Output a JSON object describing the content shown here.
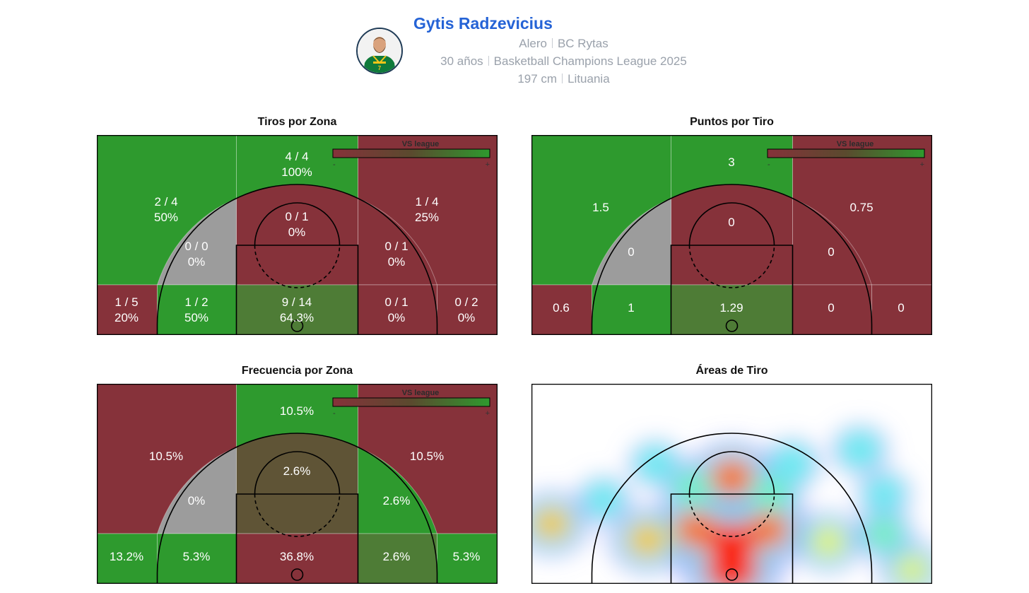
{
  "player": {
    "name": "Gytis Radzevicius",
    "position": "Alero",
    "team": "BC Rytas",
    "age": "30 años",
    "competition": "Basketball Champions League 2025",
    "height": "197 cm",
    "country": "Lituania",
    "avatar_icon": "player-portrait-icon"
  },
  "colors": {
    "above": "#2e9a2e",
    "below": "#86323a",
    "near_above": "#4e7c36",
    "near_below": "#5f5436",
    "no_data": "#9c9c9c",
    "title": "#2563d6"
  },
  "legend": {
    "title": "VS league",
    "minus": "-",
    "plus": "+"
  },
  "chart_data": [
    {
      "type": "heatmap",
      "title": "Tiros por Zona",
      "subtitle": "",
      "zones": [
        {
          "zone": "left-wing-three",
          "line1": "2 / 4",
          "line2": "50%",
          "level": "above"
        },
        {
          "zone": "top-three",
          "line1": "4 / 4",
          "line2": "100%",
          "level": "above"
        },
        {
          "zone": "right-wing-three",
          "line1": "1 / 4",
          "line2": "25%",
          "level": "below"
        },
        {
          "zone": "top-key",
          "line1": "0 / 1",
          "line2": "0%",
          "level": "below"
        },
        {
          "zone": "left-midrange",
          "line1": "0 / 0",
          "line2": "0%",
          "level": "no_data"
        },
        {
          "zone": "right-midrange",
          "line1": "0 / 1",
          "line2": "0%",
          "level": "below"
        },
        {
          "zone": "left-corner-three",
          "line1": "1 / 5",
          "line2": "20%",
          "level": "below"
        },
        {
          "zone": "left-baseline",
          "line1": "1 / 2",
          "line2": "50%",
          "level": "above"
        },
        {
          "zone": "paint",
          "line1": "9 / 14",
          "line2": "64.3%",
          "level": "near_above"
        },
        {
          "zone": "right-baseline",
          "line1": "0 / 1",
          "line2": "0%",
          "level": "below"
        },
        {
          "zone": "right-corner-three",
          "line1": "0 / 2",
          "line2": "0%",
          "level": "below"
        }
      ]
    },
    {
      "type": "heatmap",
      "title": "Puntos por Tiro",
      "subtitle": "",
      "zones": [
        {
          "zone": "left-wing-three",
          "line1": "1.5",
          "line2": "",
          "level": "above"
        },
        {
          "zone": "top-three",
          "line1": "3",
          "line2": "",
          "level": "above"
        },
        {
          "zone": "right-wing-three",
          "line1": "0.75",
          "line2": "",
          "level": "below"
        },
        {
          "zone": "top-key",
          "line1": "0",
          "line2": "",
          "level": "below"
        },
        {
          "zone": "left-midrange",
          "line1": "0",
          "line2": "",
          "level": "no_data"
        },
        {
          "zone": "right-midrange",
          "line1": "0",
          "line2": "",
          "level": "below"
        },
        {
          "zone": "left-corner-three",
          "line1": "0.6",
          "line2": "",
          "level": "below"
        },
        {
          "zone": "left-baseline",
          "line1": "1",
          "line2": "",
          "level": "above"
        },
        {
          "zone": "paint",
          "line1": "1.29",
          "line2": "",
          "level": "near_above"
        },
        {
          "zone": "right-baseline",
          "line1": "0",
          "line2": "",
          "level": "below"
        },
        {
          "zone": "right-corner-three",
          "line1": "0",
          "line2": "",
          "level": "below"
        }
      ]
    },
    {
      "type": "heatmap",
      "title": "Frecuencia por Zona",
      "subtitle": "",
      "zones": [
        {
          "zone": "left-wing-three",
          "line1": "10.5%",
          "line2": "",
          "level": "below"
        },
        {
          "zone": "top-three",
          "line1": "10.5%",
          "line2": "",
          "level": "above"
        },
        {
          "zone": "right-wing-three",
          "line1": "10.5%",
          "line2": "",
          "level": "below"
        },
        {
          "zone": "top-key",
          "line1": "2.6%",
          "line2": "",
          "level": "near_below"
        },
        {
          "zone": "left-midrange",
          "line1": "0%",
          "line2": "",
          "level": "no_data"
        },
        {
          "zone": "right-midrange",
          "line1": "2.6%",
          "line2": "",
          "level": "above"
        },
        {
          "zone": "left-corner-three",
          "line1": "13.2%",
          "line2": "",
          "level": "above"
        },
        {
          "zone": "left-baseline",
          "line1": "5.3%",
          "line2": "",
          "level": "above"
        },
        {
          "zone": "paint",
          "line1": "36.8%",
          "line2": "",
          "level": "below"
        },
        {
          "zone": "right-baseline",
          "line1": "2.6%",
          "line2": "",
          "level": "near_above"
        },
        {
          "zone": "right-corner-three",
          "line1": "5.3%",
          "line2": "",
          "level": "above"
        }
      ]
    },
    {
      "type": "heatmap",
      "title": "Áreas de Tiro",
      "subtitle": "",
      "description": "shot density",
      "hotspots": [
        {
          "x": 0.5,
          "y": 0.93,
          "intensity": 1.0
        },
        {
          "x": 0.5,
          "y": 0.8,
          "intensity": 0.9
        },
        {
          "x": 0.41,
          "y": 0.73,
          "intensity": 0.75
        },
        {
          "x": 0.59,
          "y": 0.73,
          "intensity": 0.7
        },
        {
          "x": 0.5,
          "y": 0.47,
          "intensity": 0.75
        },
        {
          "x": 0.29,
          "y": 0.78,
          "intensity": 0.6
        },
        {
          "x": 0.05,
          "y": 0.7,
          "intensity": 0.55
        },
        {
          "x": 0.74,
          "y": 0.79,
          "intensity": 0.45
        },
        {
          "x": 0.95,
          "y": 0.93,
          "intensity": 0.4
        },
        {
          "x": 0.82,
          "y": 0.33,
          "intensity": 0.25
        },
        {
          "x": 0.88,
          "y": 0.55,
          "intensity": 0.2
        },
        {
          "x": 0.88,
          "y": 0.75,
          "intensity": 0.3
        },
        {
          "x": 0.31,
          "y": 0.4,
          "intensity": 0.2
        },
        {
          "x": 0.65,
          "y": 0.4,
          "intensity": 0.25
        },
        {
          "x": 0.18,
          "y": 0.58,
          "intensity": 0.2
        },
        {
          "x": 0.4,
          "y": 0.52,
          "intensity": 0.3
        },
        {
          "x": 0.6,
          "y": 0.55,
          "intensity": 0.3
        }
      ]
    }
  ]
}
